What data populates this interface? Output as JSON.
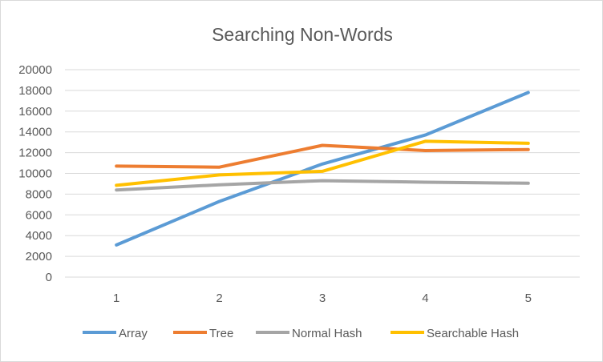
{
  "chart_data": {
    "type": "line",
    "title": "Searching Non-Words",
    "xlabel": "",
    "ylabel": "",
    "x": [
      1,
      2,
      3,
      4,
      5
    ],
    "ylim": [
      0,
      20000
    ],
    "yticks": [
      0,
      2000,
      4000,
      6000,
      8000,
      10000,
      12000,
      14000,
      16000,
      18000,
      20000
    ],
    "grid": true,
    "legend_position": "bottom",
    "series": [
      {
        "name": "Array",
        "color": "#5b9bd5",
        "values": [
          3100,
          7300,
          10900,
          13700,
          17800
        ]
      },
      {
        "name": "Tree",
        "color": "#ed7d31",
        "values": [
          10700,
          10600,
          12700,
          12200,
          12300
        ]
      },
      {
        "name": "Normal Hash",
        "color": "#a5a5a5",
        "values": [
          8400,
          8900,
          9300,
          9150,
          9050
        ]
      },
      {
        "name": "Searchable Hash",
        "color": "#ffc000",
        "values": [
          8850,
          9850,
          10200,
          13100,
          12900
        ]
      }
    ]
  }
}
